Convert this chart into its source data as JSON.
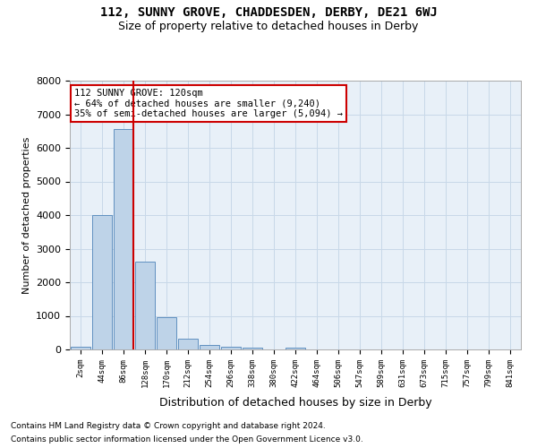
{
  "title_line1": "112, SUNNY GROVE, CHADDESDEN, DERBY, DE21 6WJ",
  "title_line2": "Size of property relative to detached houses in Derby",
  "xlabel": "Distribution of detached houses by size in Derby",
  "ylabel": "Number of detached properties",
  "categories": [
    "2sqm",
    "44sqm",
    "86sqm",
    "128sqm",
    "170sqm",
    "212sqm",
    "254sqm",
    "296sqm",
    "338sqm",
    "380sqm",
    "422sqm",
    "464sqm",
    "506sqm",
    "547sqm",
    "589sqm",
    "631sqm",
    "673sqm",
    "715sqm",
    "757sqm",
    "799sqm",
    "841sqm"
  ],
  "values": [
    70,
    4000,
    6550,
    2620,
    950,
    320,
    130,
    80,
    55,
    0,
    55,
    0,
    0,
    0,
    0,
    0,
    0,
    0,
    0,
    0,
    0
  ],
  "bar_color": "#bed3e8",
  "bar_edge_color": "#6090c0",
  "grid_color": "#c8d8e8",
  "bg_color": "#e8f0f8",
  "vline_x_index": 2,
  "vline_color": "#cc0000",
  "annotation_line1": "112 SUNNY GROVE: 120sqm",
  "annotation_line2": "← 64% of detached houses are smaller (9,240)",
  "annotation_line3": "35% of semi-detached houses are larger (5,094) →",
  "annotation_box_color": "#ffffff",
  "annotation_box_edge": "#cc0000",
  "ylim": [
    0,
    8000
  ],
  "yticks": [
    0,
    1000,
    2000,
    3000,
    4000,
    5000,
    6000,
    7000,
    8000
  ],
  "footer_line1": "Contains HM Land Registry data © Crown copyright and database right 2024.",
  "footer_line2": "Contains public sector information licensed under the Open Government Licence v3.0."
}
